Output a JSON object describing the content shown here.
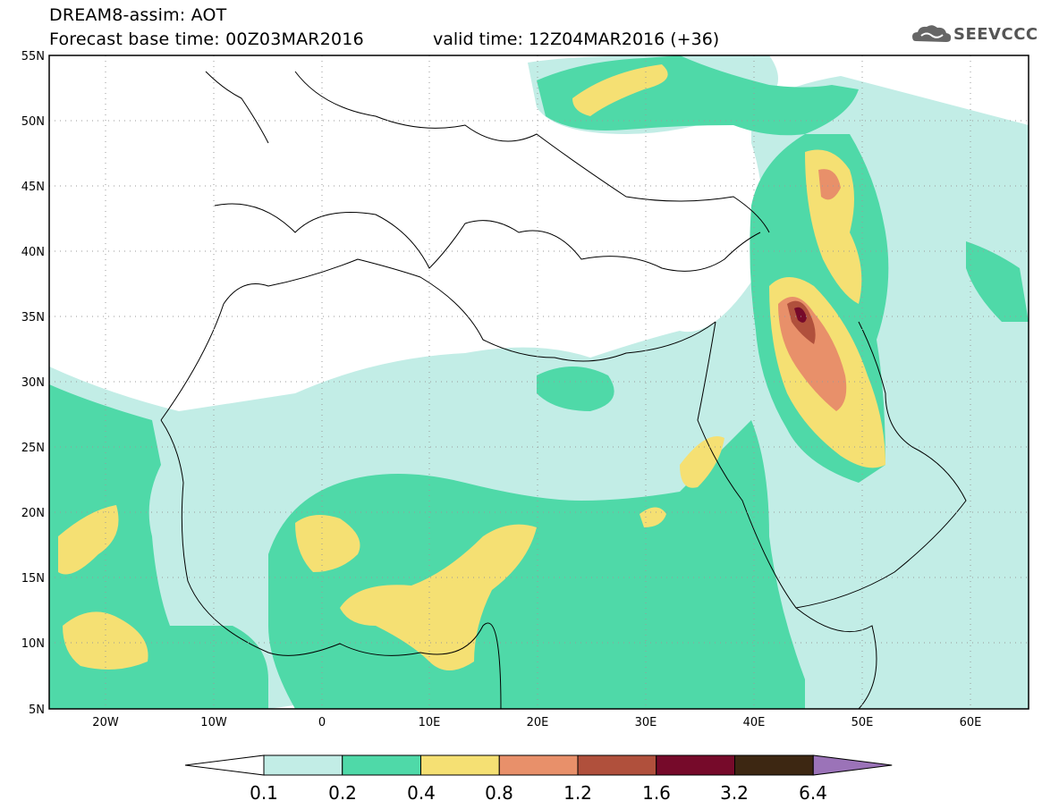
{
  "header": {
    "line1": "DREAM8-assim: AOT",
    "line2": "Forecast base time: 00Z03MAR2016",
    "valid": "valid time: 12Z04MAR2016 (+36)"
  },
  "logo": {
    "text": "SEEVCCC",
    "icon": "cloud-icon"
  },
  "map": {
    "lon_range": [
      -25,
      65
    ],
    "lat_range": [
      5,
      55
    ],
    "grid": true,
    "lat_ticks": [
      "55N",
      "50N",
      "45N",
      "40N",
      "35N",
      "30N",
      "25N",
      "20N",
      "15N",
      "10N",
      "5N"
    ],
    "lon_ticks": [
      "20W",
      "10W",
      "0",
      "10E",
      "20E",
      "30E",
      "40E",
      "50E",
      "60E"
    ]
  },
  "colorbar": {
    "labels": [
      "0.1",
      "0.2",
      "0.4",
      "0.8",
      "1.2",
      "1.6",
      "3.2",
      "6.4"
    ],
    "colors": [
      "#ffffff",
      "#c2ede6",
      "#4fd9a8",
      "#f5e073",
      "#e8906a",
      "#b0503c",
      "#760a2a",
      "#3d2712",
      "#9b73b8"
    ]
  }
}
